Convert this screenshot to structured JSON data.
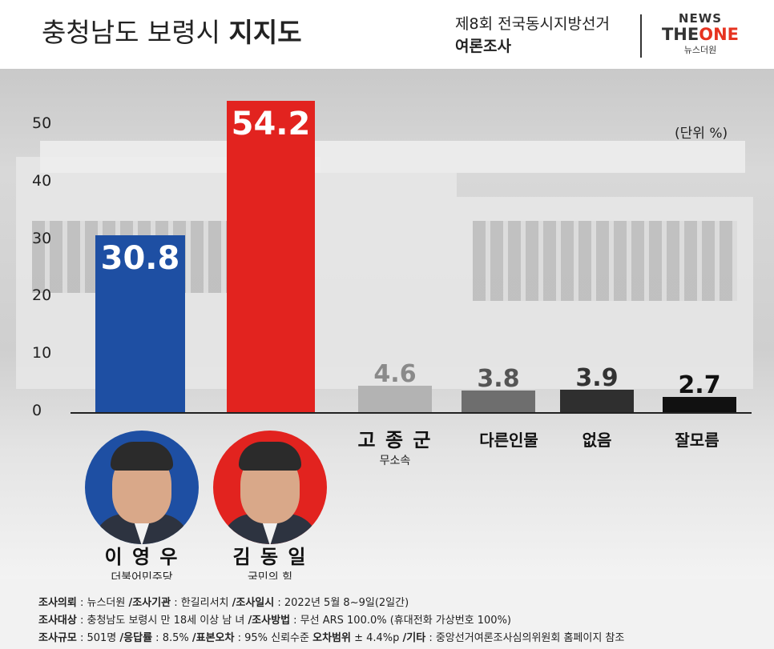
{
  "header": {
    "title_regular": "충청남도 보령시",
    "title_bold": "지지도",
    "survey_line1": "제8회 전국동시지방선거",
    "survey_line2": "여론조사",
    "logo_news": "NEWS",
    "logo_the": "THE",
    "logo_one": "ONE",
    "logo_korean": "뉴스더원"
  },
  "unit_label": "(단위 %)",
  "chart_data": {
    "type": "bar",
    "title": "충청남도 보령시 지지도",
    "ylim": [
      0,
      55
    ],
    "yticks": [
      "0",
      "10",
      "20",
      "30",
      "40",
      "50"
    ],
    "categories": [
      "이영우",
      "김동일",
      "고종군",
      "다른인물",
      "없음",
      "잘모름"
    ],
    "values": [
      30.8,
      54.2,
      4.6,
      3.8,
      3.9,
      2.7
    ],
    "value_labels": [
      "30.8",
      "54.2",
      "4.6",
      "3.8",
      "3.9",
      "2.7"
    ],
    "colors": [
      "#1e4fa3",
      "#e2231f",
      "#b3b3b3",
      "#6e6e6e",
      "#2f2f2f",
      "#111111"
    ],
    "label_colors": [
      "#ffffff",
      "#ffffff",
      "#8a8a8a",
      "#555555",
      "#333333",
      "#111111"
    ],
    "grid": false
  },
  "candidates": [
    {
      "name": "이 영 우",
      "party": "더불어민주당",
      "ring_color": "#1e4fa3"
    },
    {
      "name": "김 동 일",
      "party": "국민의 힘",
      "ring_color": "#e2231f"
    },
    {
      "name": "고 종 군",
      "party": "무소속"
    }
  ],
  "other_labels": [
    "다른인물",
    "없음",
    "잘모름"
  ],
  "footer": {
    "line1": [
      {
        "k": "조사의뢰",
        "v": " : 뉴스더원 "
      },
      {
        "k": "/조사기관",
        "v": " : 한길리서치 "
      },
      {
        "k": "/조사일시",
        "v": " : 2022년 5월 8~9일(2일간)"
      }
    ],
    "line2": [
      {
        "k": "조사대상",
        "v": " : 충청남도 보령시 만 18세 이상 남 녀 "
      },
      {
        "k": "/조사방법",
        "v": " : 무선 ARS 100.0% (휴대전화 가상번호 100%)"
      }
    ],
    "line3": [
      {
        "k": "조사규모",
        "v": " : 501명 "
      },
      {
        "k": "/응답률",
        "v": " : 8.5% "
      },
      {
        "k": "/표본오차",
        "v": " : 95% 신뢰수준 "
      },
      {
        "k": "오차범위",
        "v": " ± 4.4%p "
      },
      {
        "k": "/기타",
        "v": " : 중앙선거여론조사심의위원회 홈페이지 참조"
      }
    ]
  }
}
